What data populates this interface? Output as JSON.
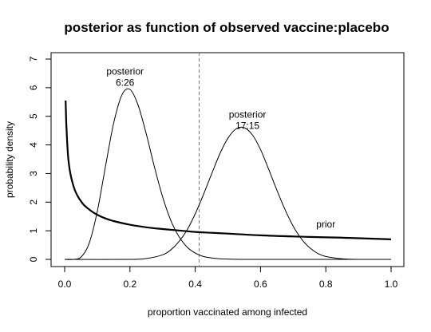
{
  "chart_data": {
    "type": "line",
    "title": "posterior as function of observed vaccine:placebo",
    "xlabel": "proportion vaccinated among infected",
    "ylabel": "probability density",
    "xlim": [
      0.0,
      1.0
    ],
    "ylim": [
      0,
      7
    ],
    "xticks": [
      "0.0",
      "0.2",
      "0.4",
      "0.6",
      "0.8",
      "1.0"
    ],
    "yticks": [
      "0",
      "1",
      "2",
      "3",
      "4",
      "5",
      "6",
      "7"
    ],
    "vline_x": 0.412,
    "series": [
      {
        "label_lines": [
          "posterior",
          "6:26"
        ],
        "label_at": [
          0.185,
          6.45
        ],
        "color": "#000000",
        "x": [
          0.0,
          0.025,
          0.05,
          0.075,
          0.1,
          0.125,
          0.15,
          0.175,
          0.2,
          0.225,
          0.25,
          0.275,
          0.3,
          0.325,
          0.35,
          0.375,
          0.4,
          0.425,
          0.45,
          0.475,
          0.5,
          0.55,
          0.6,
          0.7,
          0.8,
          1.0
        ],
        "y": [
          0.0,
          0.0,
          0.08,
          0.56,
          1.68,
          3.24,
          4.75,
          5.74,
          5.94,
          5.39,
          4.38,
          3.23,
          2.19,
          1.37,
          0.8,
          0.43,
          0.22,
          0.1,
          0.05,
          0.02,
          0.01,
          0.0,
          0.0,
          0.0,
          0.0,
          0.0
        ]
      },
      {
        "label_lines": [
          "posterior",
          "17:15"
        ],
        "label_at": [
          0.56,
          4.95
        ],
        "color": "#000000",
        "x": [
          0.0,
          0.2,
          0.25,
          0.3,
          0.325,
          0.35,
          0.375,
          0.4,
          0.425,
          0.45,
          0.475,
          0.5,
          0.525,
          0.55,
          0.575,
          0.6,
          0.625,
          0.65,
          0.675,
          0.7,
          0.725,
          0.75,
          0.775,
          0.8,
          0.85,
          0.9,
          1.0
        ],
        "y": [
          0.0,
          0.0,
          0.03,
          0.16,
          0.33,
          0.62,
          1.03,
          1.59,
          2.26,
          2.98,
          3.68,
          4.23,
          4.56,
          4.6,
          4.35,
          3.84,
          3.15,
          2.42,
          1.74,
          1.16,
          0.72,
          0.41,
          0.21,
          0.1,
          0.02,
          0.0,
          0.0
        ]
      },
      {
        "label_lines": [
          "prior"
        ],
        "label_at": [
          0.8,
          1.12
        ],
        "color": "#000000",
        "x": [
          0.003,
          0.005,
          0.01,
          0.015,
          0.02,
          0.03,
          0.04,
          0.05,
          0.06,
          0.08,
          0.1,
          0.125,
          0.15,
          0.2,
          0.25,
          0.3,
          0.35,
          0.4,
          0.45,
          0.5,
          0.6,
          0.7,
          0.8,
          0.9,
          1.0
        ],
        "y": [
          5.55,
          4.78,
          3.67,
          3.17,
          2.86,
          2.46,
          2.21,
          2.03,
          1.89,
          1.7,
          1.56,
          1.43,
          1.34,
          1.21,
          1.12,
          1.06,
          1.01,
          0.96,
          0.93,
          0.9,
          0.84,
          0.8,
          0.77,
          0.74,
          0.7
        ]
      }
    ]
  }
}
